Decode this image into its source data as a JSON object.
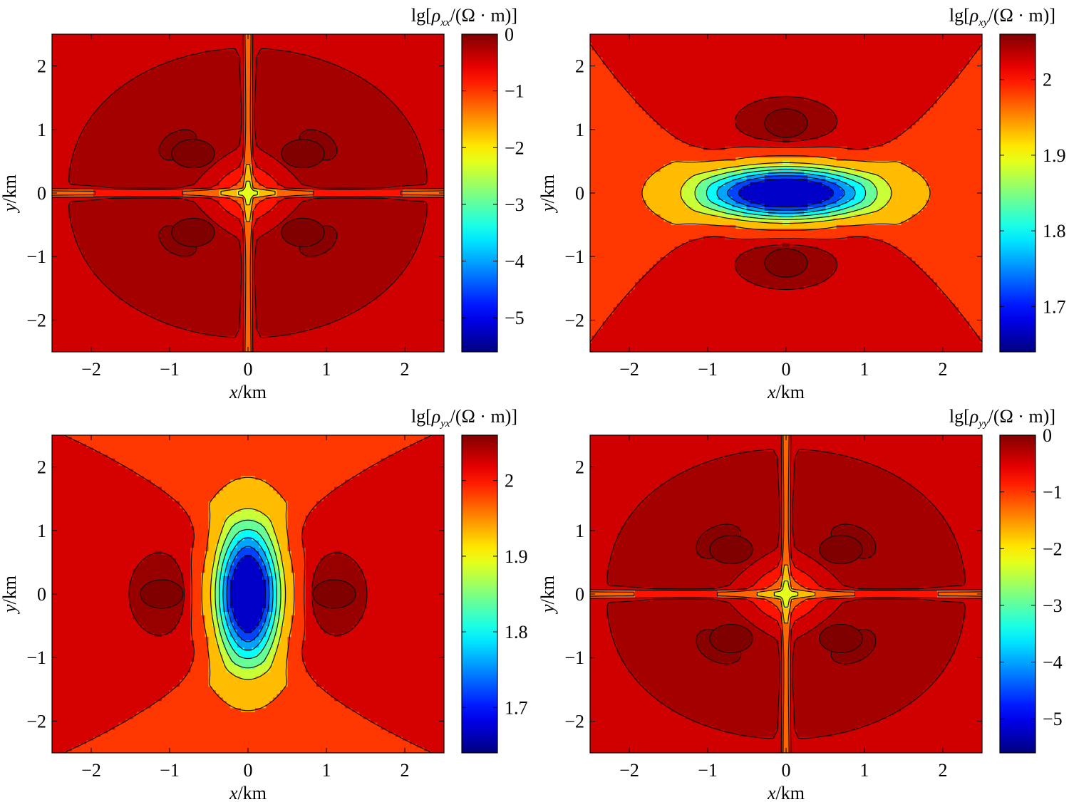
{
  "chart_data": [
    {
      "type": "heatmap",
      "field": "quadrupole",
      "colorbar_title": {
        "prefix": "lg[",
        "symbol": "ρ",
        "sub": "xx",
        "suffix": "/(Ω · m)]"
      },
      "xlabel": {
        "var": "x",
        "unit": "/km"
      },
      "ylabel": {
        "var": "y",
        "unit": "/km"
      },
      "xlim": [
        -2.5,
        2.5
      ],
      "ylim": [
        -2.5,
        2.5
      ],
      "xticks": [
        -2,
        -1,
        0,
        1,
        2
      ],
      "yticks": [
        -2,
        -1,
        0,
        1,
        2
      ],
      "xtick_labels": [
        "−2",
        "−1",
        "0",
        "1",
        "2"
      ],
      "ytick_labels": [
        "−2",
        "−1",
        "0",
        "1",
        "2"
      ],
      "color_range": [
        -5.6,
        0
      ],
      "colorbar_ticks": [
        0,
        -1,
        -2,
        -3,
        -4,
        -5
      ],
      "colorbar_tick_labels": [
        "0",
        "−1",
        "−2",
        "−3",
        "−4",
        "−5"
      ],
      "contour_levels": [
        -4.5,
        -3.5,
        -3,
        -2.5,
        -2,
        -1.5,
        -1,
        -0.6,
        -0.3,
        -0.1
      ],
      "peaks": [
        {
          "x": -0.7,
          "y": 0.62,
          "value": 0
        },
        {
          "x": 0.7,
          "y": 0.62,
          "value": 0
        },
        {
          "x": -0.7,
          "y": -0.62,
          "value": 0
        },
        {
          "x": 0.7,
          "y": -0.62,
          "value": 0
        }
      ]
    },
    {
      "type": "heatmap",
      "field": "saddle-horizontal",
      "colorbar_title": {
        "prefix": "lg[",
        "symbol": "ρ",
        "sub": "xy",
        "suffix": "/(Ω · m)]"
      },
      "xlabel": {
        "var": "x",
        "unit": "/km"
      },
      "ylabel": {
        "var": "y",
        "unit": "/km"
      },
      "xlim": [
        -2.5,
        2.5
      ],
      "ylim": [
        -2.5,
        2.5
      ],
      "xticks": [
        -2,
        -1,
        0,
        1,
        2
      ],
      "yticks": [
        -2,
        -1,
        0,
        1,
        2
      ],
      "xtick_labels": [
        "−2",
        "−1",
        "0",
        "1",
        "2"
      ],
      "ytick_labels": [
        "−2",
        "−1",
        "0",
        "1",
        "2"
      ],
      "color_range": [
        1.64,
        2.06
      ],
      "colorbar_ticks": [
        2,
        1.9,
        1.8,
        1.7
      ],
      "colorbar_tick_labels": [
        "2",
        "1.9",
        "1.8",
        "1.7"
      ],
      "contour_levels": [
        1.7,
        1.74,
        1.78,
        1.82,
        1.86,
        1.9,
        1.96,
        2.01,
        2.04
      ],
      "min_value": 1.66,
      "peaks": [
        {
          "x": 0,
          "y": 1.1,
          "value": 2.06
        },
        {
          "x": 0,
          "y": -1.1,
          "value": 2.06
        }
      ]
    },
    {
      "type": "heatmap",
      "field": "saddle-vertical",
      "colorbar_title": {
        "prefix": "lg[",
        "symbol": "ρ",
        "sub": "yx",
        "suffix": "/(Ω · m)]"
      },
      "xlabel": {
        "var": "x",
        "unit": "/km"
      },
      "ylabel": {
        "var": "y",
        "unit": "/km"
      },
      "xlim": [
        -2.5,
        2.5
      ],
      "ylim": [
        -2.5,
        2.5
      ],
      "xticks": [
        -2,
        -1,
        0,
        1,
        2
      ],
      "yticks": [
        -2,
        -1,
        0,
        1,
        2
      ],
      "xtick_labels": [
        "−2",
        "−1",
        "0",
        "1",
        "2"
      ],
      "ytick_labels": [
        "−2",
        "−1",
        "0",
        "1",
        "2"
      ],
      "color_range": [
        1.64,
        2.06
      ],
      "colorbar_ticks": [
        2,
        1.9,
        1.8,
        1.7
      ],
      "colorbar_tick_labels": [
        "2",
        "1.9",
        "1.8",
        "1.7"
      ],
      "contour_levels": [
        1.7,
        1.74,
        1.78,
        1.82,
        1.86,
        1.9,
        1.96,
        2.01,
        2.04
      ],
      "min_value": 1.66,
      "peaks": [
        {
          "x": -1.1,
          "y": 0,
          "value": 2.06
        },
        {
          "x": 1.1,
          "y": 0,
          "value": 2.06
        }
      ]
    },
    {
      "type": "heatmap",
      "field": "quadrupole",
      "colorbar_title": {
        "prefix": "lg[",
        "symbol": "ρ",
        "sub": "yy",
        "suffix": "/(Ω · m)]"
      },
      "xlabel": {
        "var": "x",
        "unit": "/km"
      },
      "ylabel": {
        "var": "y",
        "unit": "/km"
      },
      "xlim": [
        -2.5,
        2.5
      ],
      "ylim": [
        -2.5,
        2.5
      ],
      "xticks": [
        -2,
        -1,
        0,
        1,
        2
      ],
      "yticks": [
        -2,
        -1,
        0,
        1,
        2
      ],
      "xtick_labels": [
        "−2",
        "−1",
        "0",
        "1",
        "2"
      ],
      "ytick_labels": [
        "−2",
        "−1",
        "0",
        "1",
        "2"
      ],
      "color_range": [
        -5.6,
        0
      ],
      "colorbar_ticks": [
        0,
        -1,
        -2,
        -3,
        -4,
        -5
      ],
      "colorbar_tick_labels": [
        "0",
        "−1",
        "−2",
        "−3",
        "−4",
        "−5"
      ],
      "contour_levels": [
        -4.5,
        -3.5,
        -3,
        -2.5,
        -2,
        -1.5,
        -1,
        -0.6,
        -0.3,
        -0.1
      ],
      "peaks": [
        {
          "x": -0.7,
          "y": 0.7,
          "value": 0
        },
        {
          "x": 0.7,
          "y": 0.7,
          "value": 0
        },
        {
          "x": -0.7,
          "y": -0.7,
          "value": 0
        },
        {
          "x": 0.7,
          "y": -0.7,
          "value": 0
        }
      ]
    }
  ]
}
